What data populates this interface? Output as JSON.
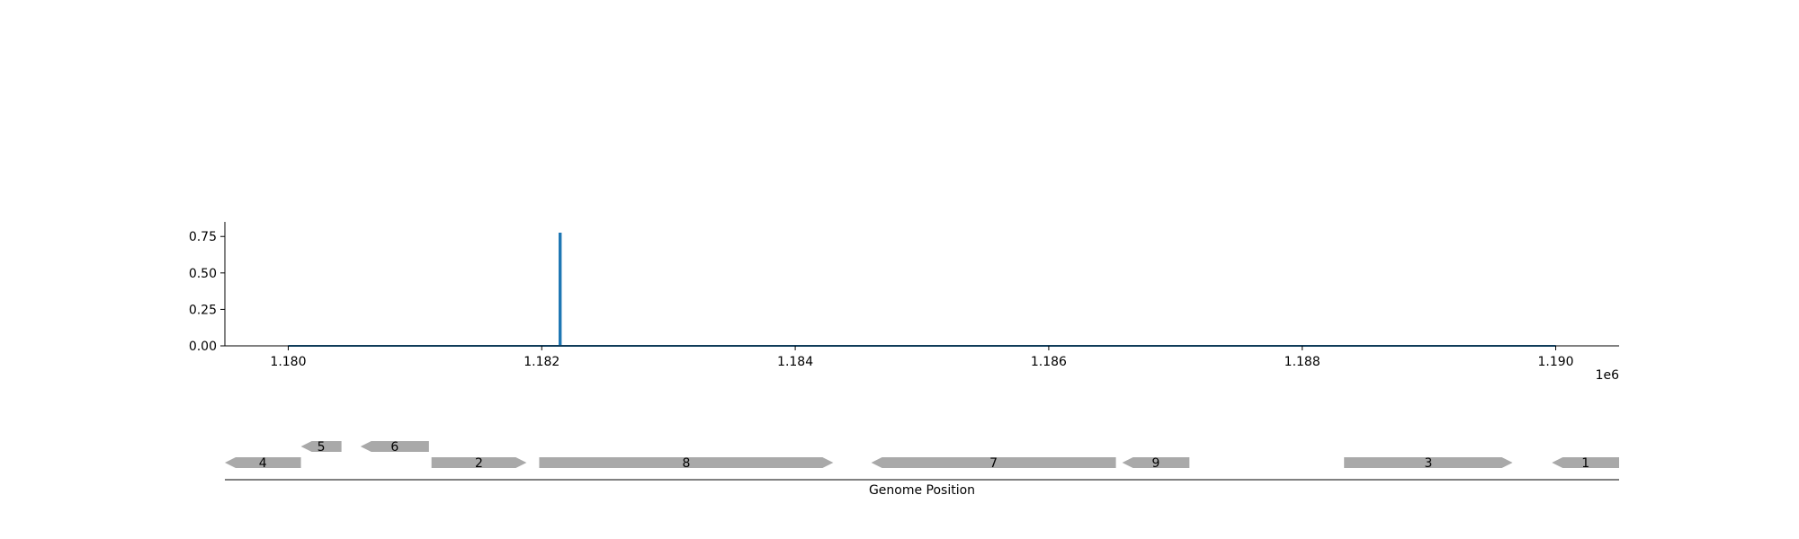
{
  "chart_data": [
    {
      "type": "line",
      "x": [
        1180000,
        1182140,
        1182140,
        1182150,
        1182150,
        1190000
      ],
      "series": [
        {
          "values": [
            0.0,
            0.0,
            0.77,
            0.77,
            0.0,
            0.0
          ]
        }
      ],
      "xlim": [
        1179500,
        1190500
      ],
      "ylim": [
        0,
        0.85
      ],
      "xticks": [
        1180000,
        1182000,
        1184000,
        1186000,
        1188000,
        1190000
      ],
      "xtick_labels": [
        "1.180",
        "1.182",
        "1.184",
        "1.186",
        "1.188",
        "1.190"
      ],
      "x_offset_label": "1e6",
      "yticks": [
        0,
        0.25,
        0.5,
        0.75
      ],
      "ytick_labels": [
        "0.00",
        "0.25",
        "0.50",
        "0.75"
      ],
      "grid": false,
      "line_color": "#1f77b4"
    },
    {
      "type": "gene_track",
      "xlim": [
        1179500,
        1190500
      ],
      "xlabel": "Genome Position",
      "genes": [
        {
          "label": "4",
          "start": 1179500,
          "end": 1180100,
          "strand": "-",
          "row": 0
        },
        {
          "label": "5",
          "start": 1180100,
          "end": 1180420,
          "strand": "-",
          "row": 1
        },
        {
          "label": "6",
          "start": 1180570,
          "end": 1181110,
          "strand": "-",
          "row": 1
        },
        {
          "label": "2",
          "start": 1181130,
          "end": 1181880,
          "strand": "+",
          "row": 0
        },
        {
          "label": "8",
          "start": 1181980,
          "end": 1184300,
          "strand": "+",
          "row": 0
        },
        {
          "label": "7",
          "start": 1184600,
          "end": 1186530,
          "strand": "-",
          "row": 0
        },
        {
          "label": "9",
          "start": 1186580,
          "end": 1187110,
          "strand": "-",
          "row": 0
        },
        {
          "label": "3",
          "start": 1188330,
          "end": 1189660,
          "strand": "+",
          "row": 0
        },
        {
          "label": "1",
          "start": 1189970,
          "end": 1190500,
          "strand": "-",
          "row": 0
        }
      ],
      "gene_color": "#a9a9a9"
    }
  ]
}
